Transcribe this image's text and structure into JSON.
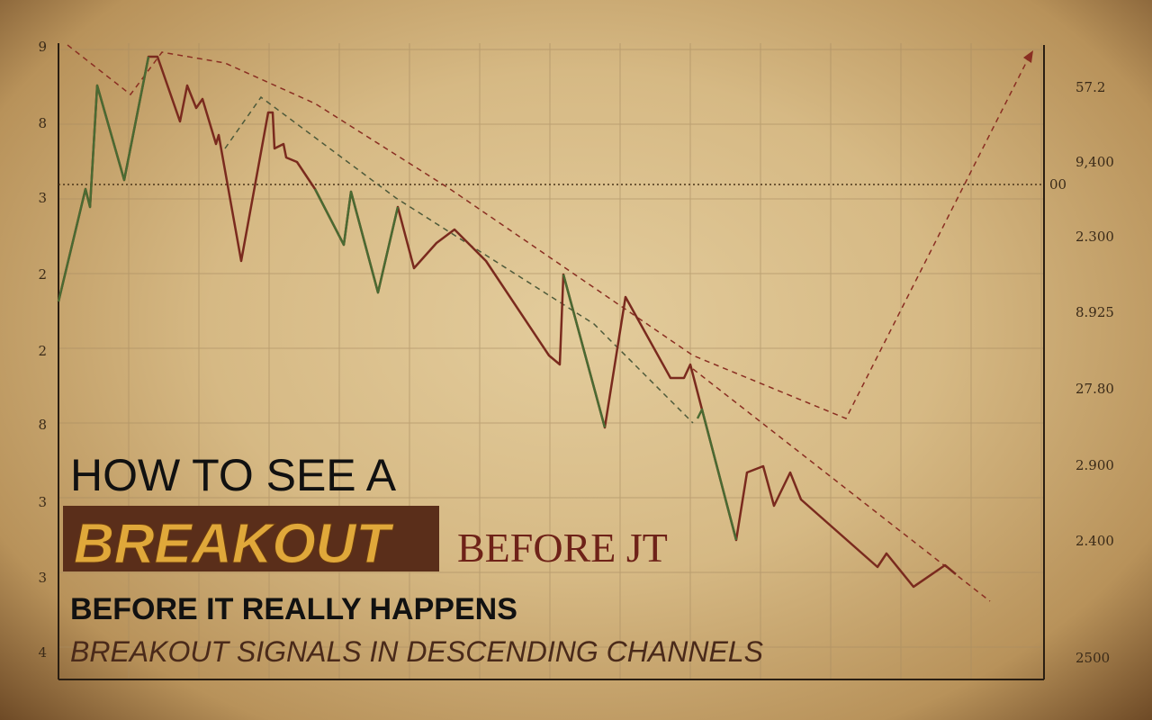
{
  "headline": {
    "line1": "HOW TO SEE A",
    "highlight": "BREAKOUT",
    "suffix": "BEFORE JT",
    "line3": "BEFORE IT REALLY HAPPENS",
    "tagline": "BREAKOUT SIGNALS IN DESCENDING CHANNELS"
  },
  "left_labels": [
    "9",
    "8",
    "3",
    "2",
    "2",
    "8",
    "3",
    "3",
    "4"
  ],
  "right_labels": [
    "57.2",
    "9,400",
    "2.300",
    "8.925",
    "27.80",
    "2.900",
    "2.400",
    "2500"
  ],
  "level_label": "00"
}
